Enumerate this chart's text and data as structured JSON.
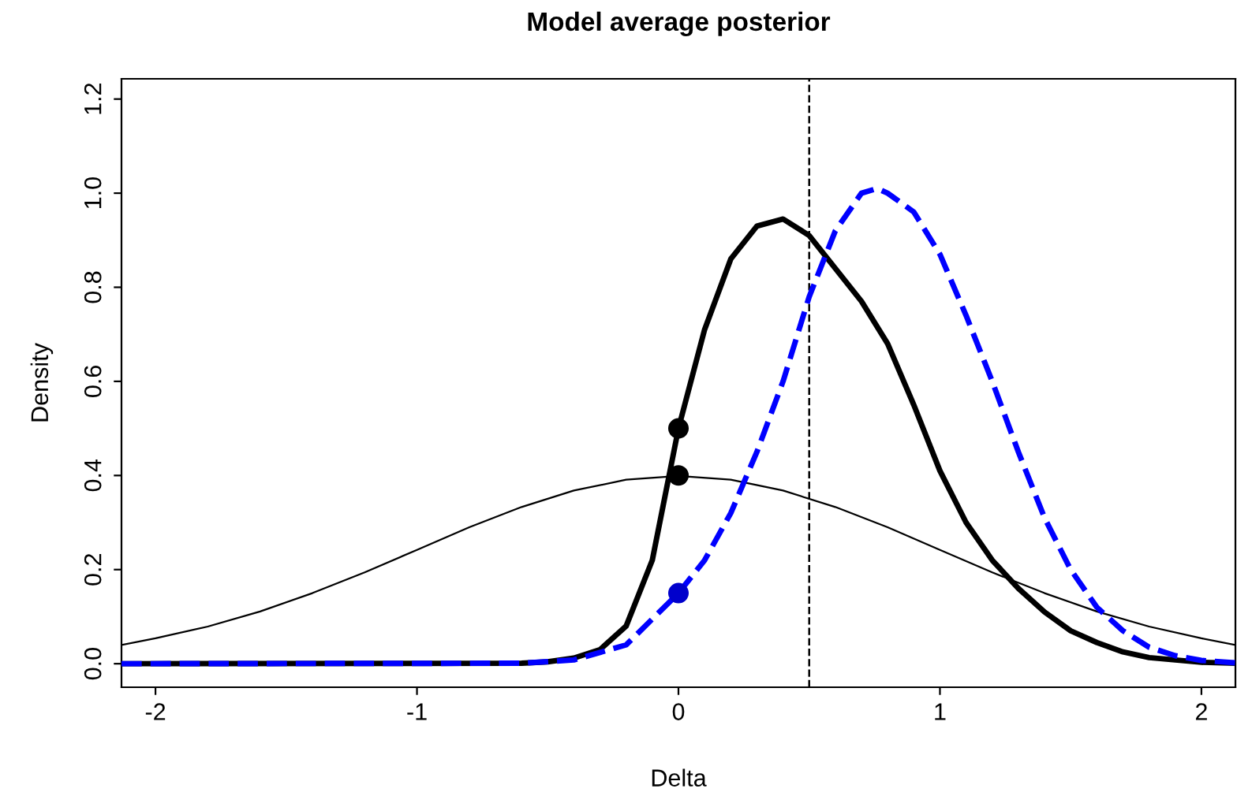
{
  "chart_data": {
    "type": "line",
    "title": "Model average posterior",
    "xlabel": "Delta",
    "ylabel": "Density",
    "xlim": [
      -2.13,
      2.13
    ],
    "ylim": [
      -0.05,
      1.243
    ],
    "xticks": [
      -2,
      -1,
      0,
      1,
      2
    ],
    "yticks": [
      {
        "value": 0,
        "label": "0.0"
      },
      {
        "value": 0.2,
        "label": "0.2"
      },
      {
        "value": 0.4,
        "label": "0.4"
      },
      {
        "value": 0.6,
        "label": "0.6"
      },
      {
        "value": 0.8,
        "label": "0.8"
      },
      {
        "value": 1.0,
        "label": "1.0"
      },
      {
        "value": 1.2,
        "label": "1.2"
      }
    ],
    "grid": false,
    "legend": false,
    "ref_lines": [
      {
        "axis": "x",
        "value": 0.5,
        "color": "#000000",
        "line_style": "dashed"
      }
    ],
    "series": [
      {
        "color": "#000000",
        "line_style": "solid",
        "x": [
          -2.13,
          -2.0,
          -1.8,
          -1.6,
          -1.4,
          -1.2,
          -1.0,
          -0.8,
          -0.6,
          -0.4,
          -0.2,
          0.0,
          0.2,
          0.4,
          0.6,
          0.8,
          1.0,
          1.2,
          1.4,
          1.6,
          1.8,
          2.0,
          2.13
        ],
        "values": [
          0.04,
          0.054,
          0.079,
          0.111,
          0.15,
          0.194,
          0.242,
          0.29,
          0.333,
          0.368,
          0.391,
          0.399,
          0.391,
          0.368,
          0.333,
          0.29,
          0.242,
          0.194,
          0.15,
          0.111,
          0.079,
          0.054,
          0.04
        ]
      },
      {
        "color": "#000000",
        "line_style": "solid",
        "x": [
          -2.13,
          -0.6,
          -0.5,
          -0.4,
          -0.3,
          -0.2,
          -0.1,
          0.0,
          0.1,
          0.2,
          0.3,
          0.4,
          0.5,
          0.6,
          0.7,
          0.8,
          0.9,
          1.0,
          1.1,
          1.2,
          1.3,
          1.4,
          1.5,
          1.6,
          1.7,
          1.8,
          2.0,
          2.13
        ],
        "values": [
          0.0,
          0.001,
          0.004,
          0.012,
          0.03,
          0.08,
          0.22,
          0.5,
          0.71,
          0.86,
          0.93,
          0.945,
          0.91,
          0.84,
          0.77,
          0.68,
          0.55,
          0.41,
          0.3,
          0.22,
          0.16,
          0.11,
          0.07,
          0.045,
          0.025,
          0.013,
          0.003,
          0.001
        ]
      },
      {
        "color": "#0000ff",
        "line_style": "dashed",
        "x": [
          -2.13,
          -0.6,
          -0.4,
          -0.2,
          0.0,
          0.1,
          0.2,
          0.3,
          0.4,
          0.5,
          0.6,
          0.7,
          0.76,
          0.8,
          0.9,
          1.0,
          1.1,
          1.2,
          1.3,
          1.4,
          1.5,
          1.6,
          1.7,
          1.8,
          1.9,
          2.0,
          2.13
        ],
        "values": [
          0.0,
          0.001,
          0.008,
          0.04,
          0.15,
          0.22,
          0.32,
          0.45,
          0.6,
          0.78,
          0.92,
          1.0,
          1.01,
          1.0,
          0.96,
          0.87,
          0.74,
          0.6,
          0.45,
          0.31,
          0.2,
          0.12,
          0.07,
          0.035,
          0.017,
          0.007,
          0.002
        ]
      },
      {
        "type": "scatter",
        "color": "#000000",
        "marker": "circle",
        "x": [
          0,
          0
        ],
        "values": [
          0.5,
          0.4
        ]
      },
      {
        "type": "scatter",
        "color": "#0000cc",
        "marker": "circle",
        "x": [
          0
        ],
        "values": [
          0.15
        ]
      }
    ]
  }
}
